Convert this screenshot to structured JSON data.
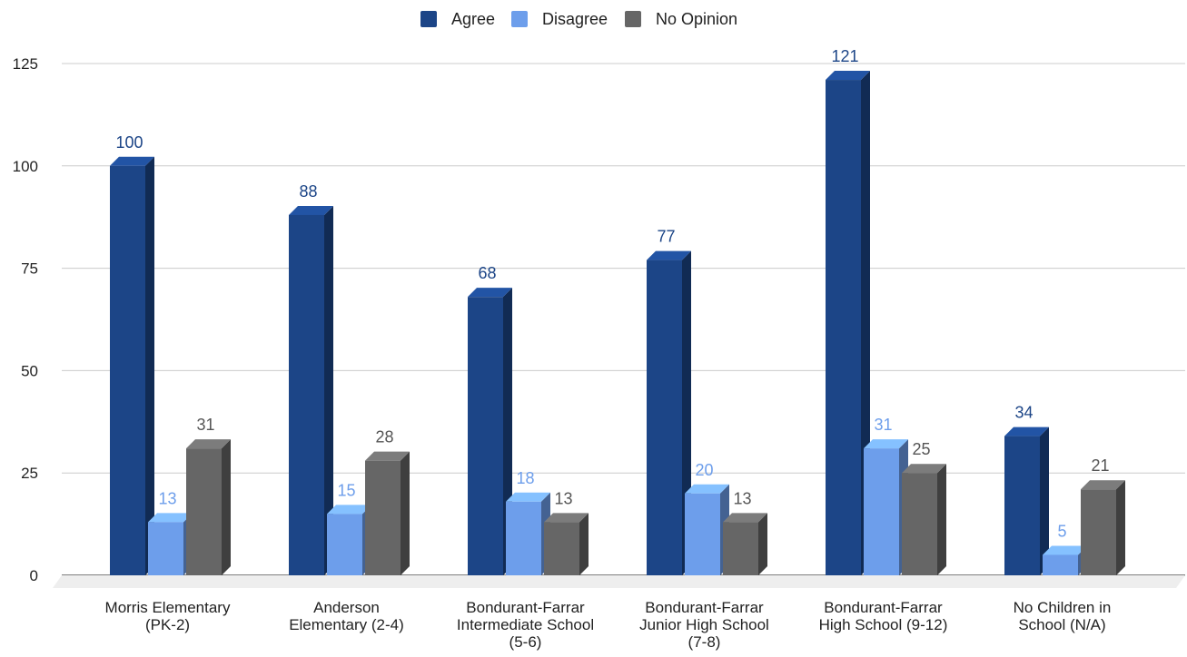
{
  "chart_data": {
    "type": "bar",
    "title": "",
    "xlabel": "",
    "ylabel": "",
    "ylim": [
      0,
      125
    ],
    "yticks": [
      0,
      25,
      50,
      75,
      100,
      125
    ],
    "grid": true,
    "legend_position": "top-center",
    "style": "3d-columns",
    "categories": [
      [
        "Morris Elementary",
        "(PK-2)"
      ],
      [
        "Anderson",
        "Elementary (2-4)"
      ],
      [
        "Bondurant-Farrar",
        "Intermediate School",
        "(5-6)"
      ],
      [
        "Bondurant-Farrar",
        "Junior High School",
        "(7-8)"
      ],
      [
        "Bondurant-Farrar",
        "High School (9-12)"
      ],
      [
        "No Children in",
        "School (N/A)"
      ]
    ],
    "series": [
      {
        "name": "Agree",
        "color": "#1c4587",
        "label_color": "#1c4587",
        "values": [
          100,
          88,
          68,
          77,
          121,
          34
        ]
      },
      {
        "name": "Disagree",
        "color": "#6d9eeb",
        "label_color": "#6d9eeb",
        "values": [
          13,
          15,
          18,
          20,
          31,
          5
        ]
      },
      {
        "name": "No Opinion",
        "color": "#666666",
        "label_color": "#555555",
        "values": [
          31,
          28,
          13,
          13,
          25,
          21
        ]
      }
    ]
  }
}
